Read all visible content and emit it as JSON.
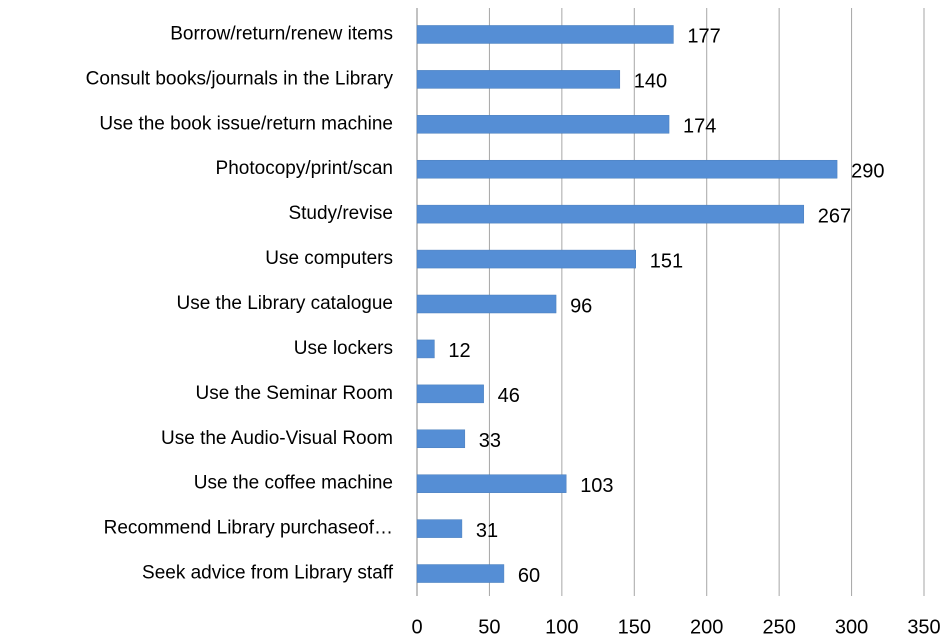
{
  "chart_data": {
    "type": "hbar",
    "categories": [
      "Borrow/return/renew items",
      "Consult books/journals in the Library",
      "Use the book issue/return machine",
      "Photocopy/print/scan",
      "Study/revise",
      "Use computers",
      "Use the Library catalogue",
      "Use lockers",
      "Use the Seminar Room",
      "Use the Audio-Visual Room",
      "Use the coffee machine",
      "Recommend Library purchaseof…",
      "Seek advice from Library staff"
    ],
    "values": [
      177,
      140,
      174,
      290,
      267,
      151,
      96,
      12,
      46,
      33,
      103,
      31,
      60
    ],
    "color": "#558ed5",
    "xlim": [
      0,
      350
    ],
    "xticks": [
      0,
      50,
      100,
      150,
      200,
      250,
      300,
      350
    ],
    "grid": true
  }
}
